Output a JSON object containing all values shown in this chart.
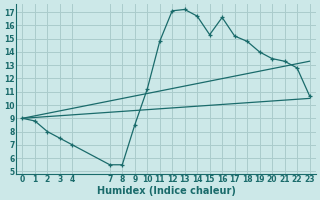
{
  "xlabel": "Humidex (Indice chaleur)",
  "bg_color": "#cce8e8",
  "line_color": "#1a6b6b",
  "grid_color": "#aacccc",
  "xlim": [
    -0.5,
    23.5
  ],
  "ylim": [
    4.8,
    17.6
  ],
  "xticks": [
    0,
    1,
    2,
    3,
    4,
    7,
    8,
    9,
    10,
    11,
    12,
    13,
    14,
    15,
    16,
    17,
    18,
    19,
    20,
    21,
    22,
    23
  ],
  "yticks": [
    5,
    6,
    7,
    8,
    9,
    10,
    11,
    12,
    13,
    14,
    15,
    16,
    17
  ],
  "line1_x": [
    0,
    1,
    2,
    3,
    4,
    7,
    8,
    9,
    10,
    11,
    12,
    13,
    14,
    15,
    16,
    17,
    18,
    19,
    20,
    21,
    22,
    23
  ],
  "line1_y": [
    9.0,
    8.8,
    8.0,
    7.5,
    7.0,
    5.5,
    5.5,
    8.5,
    11.2,
    14.8,
    17.1,
    17.2,
    16.7,
    15.3,
    16.6,
    15.2,
    14.8,
    14.0,
    13.5,
    13.3,
    12.8,
    10.7
  ],
  "line2_x": [
    0,
    23
  ],
  "line2_y": [
    9.0,
    10.5
  ],
  "line3_x": [
    0,
    23
  ],
  "line3_y": [
    9.0,
    13.3
  ],
  "tick_fontsize": 5.5,
  "label_fontsize": 7.0,
  "font_color": "#1a6b6b"
}
